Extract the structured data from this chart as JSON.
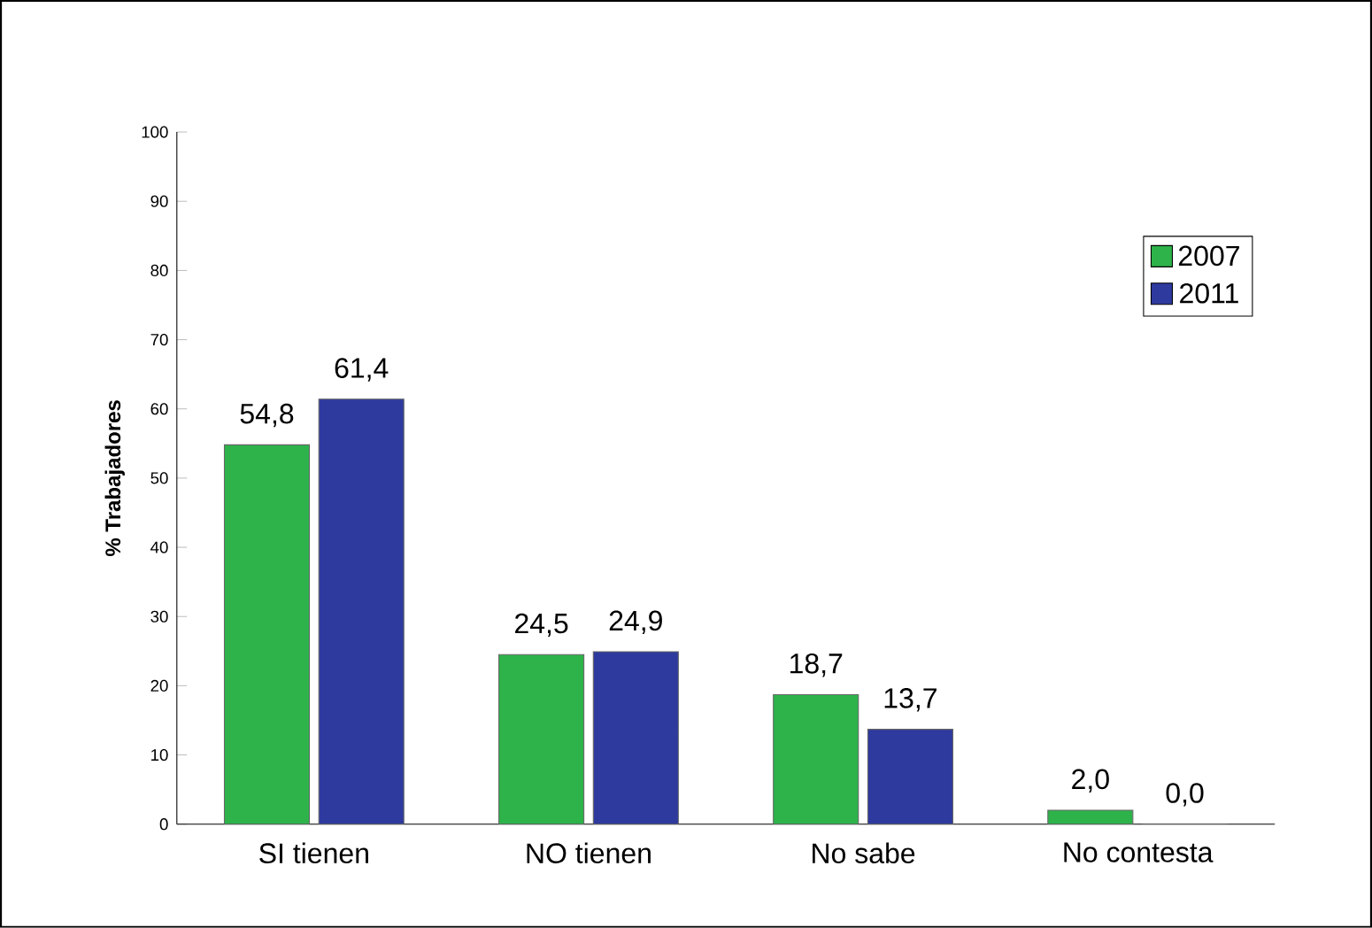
{
  "chart_data": {
    "type": "bar",
    "ylabel": "% Trabajadores",
    "categories": [
      "SI tienen",
      "NO tienen",
      "No sabe",
      "No contesta"
    ],
    "series": [
      {
        "name": "2007",
        "color": "#2db34a",
        "values": [
          54.8,
          24.5,
          18.7,
          2.0
        ],
        "value_labels": [
          "54,8",
          "24,5",
          "18,7",
          "2,0"
        ]
      },
      {
        "name": "2011",
        "color": "#2e3a9e",
        "values": [
          61.4,
          24.9,
          13.7,
          0.0
        ],
        "value_labels": [
          "61,4",
          "24,9",
          "13,7",
          "0,0"
        ]
      }
    ],
    "ylim": [
      0,
      100
    ],
    "yticks": [
      0,
      10,
      20,
      30,
      40,
      50,
      60,
      70,
      80,
      90,
      100
    ],
    "legend": "top right"
  }
}
